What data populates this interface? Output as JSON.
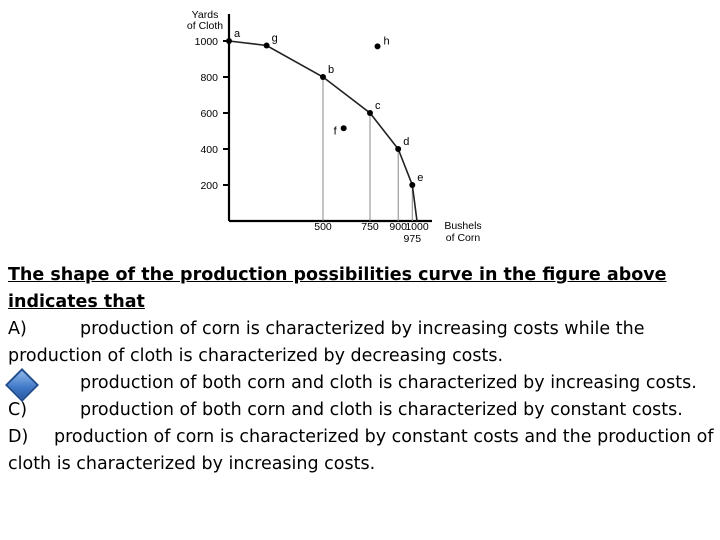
{
  "chart_data": {
    "type": "line",
    "ylabel_lines": [
      "Yards",
      "of Cloth"
    ],
    "xlabel_lines": [
      "Bushels",
      "of Corn"
    ],
    "x_ticks": [
      500,
      750,
      900,
      1000
    ],
    "x_tick_extra": 975,
    "y_ticks": [
      200,
      400,
      600,
      800,
      1000
    ],
    "xlim": [
      0,
      1000
    ],
    "ylim": [
      0,
      1000
    ],
    "curve": [
      {
        "label": "a",
        "x": 0,
        "y": 1000
      },
      {
        "label": "g",
        "x": 200,
        "y": 975
      },
      {
        "label": "b",
        "x": 500,
        "y": 800
      },
      {
        "label": "c",
        "x": 750,
        "y": 600
      },
      {
        "label": "d",
        "x": 900,
        "y": 400
      },
      {
        "label": "e",
        "x": 975,
        "y": 200
      },
      {
        "label": "",
        "x": 1000,
        "y": 0
      }
    ],
    "off_curve_points": [
      {
        "label": "h",
        "x": 790,
        "y": 970
      },
      {
        "label": "f",
        "x": 610,
        "y": 515
      }
    ],
    "drop_lines_from": [
      "b",
      "c",
      "d",
      "e"
    ]
  },
  "question": {
    "stem": "The shape of the production possibilities curve in the figure above indicates that",
    "options": [
      {
        "letter": "A)",
        "text": "production of corn is characterized by increasing costs while the production of cloth is characterized by decreasing costs."
      },
      {
        "letter": "B)",
        "text": "production of both corn and cloth is characterized by increasing costs."
      },
      {
        "letter": "C)",
        "text": "production of both corn and cloth is characterized by constant costs."
      },
      {
        "letter": "D)",
        "text": "production of corn is characterized by constant costs and the production of cloth is characterized by increasing costs."
      }
    ]
  }
}
